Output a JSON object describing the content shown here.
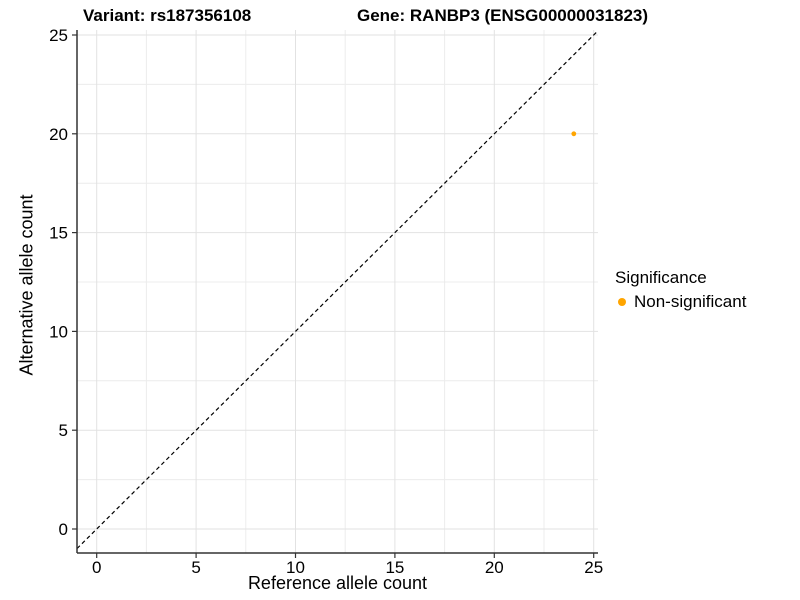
{
  "header": {
    "title_left": "Variant: rs187356108",
    "title_right": "Gene: RANBP3 (ENSG00000031823)"
  },
  "axes": {
    "x_label": "Reference allele count",
    "y_label": "Alternative allele count"
  },
  "legend": {
    "title": "Significance",
    "position": "right",
    "items": [
      {
        "label": "Non-significant",
        "color": "#FFA500"
      }
    ]
  },
  "colors": {
    "point_orange": "#FFA500",
    "grid_major": "#e2e2e2",
    "grid_minor": "#ececec",
    "axis_line": "#333333",
    "dashed_line": "#000000",
    "text": "#000000",
    "background": "#ffffff"
  },
  "chart_data": {
    "type": "scatter",
    "title_left": "Variant: rs187356108",
    "title_right": "Gene: RANBP3 (ENSG00000031823)",
    "xlabel": "Reference allele count",
    "ylabel": "Alternative allele count",
    "points": [
      {
        "x": 24,
        "y": 20,
        "series": "Non-significant",
        "color": "#FFA500"
      }
    ],
    "identity_line": {
      "equation": "y = x",
      "style": "dashed",
      "color": "#000000"
    },
    "x_ticks": [
      0,
      5,
      10,
      15,
      20,
      25
    ],
    "y_ticks": [
      0,
      5,
      10,
      15,
      20,
      25
    ],
    "minor_grid_step": 2.5,
    "xlim": [
      -1,
      25.2
    ],
    "ylim": [
      -1.2,
      25.3
    ],
    "grid": "on",
    "legend_title": "Significance",
    "legend_position": "right"
  }
}
